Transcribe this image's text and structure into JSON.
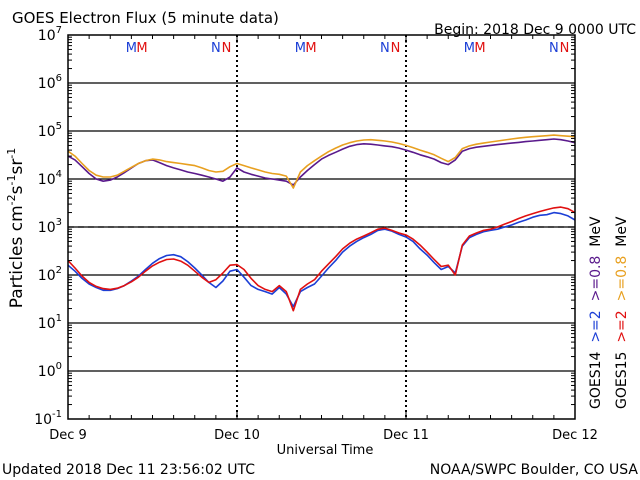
{
  "header": {
    "title": "GOES Electron Flux (5 minute data)",
    "begin": "Begin: 2018 Dec 9 0000 UTC"
  },
  "footer": {
    "updated": "Updated 2018 Dec 11 23:56:02 UTC",
    "source": "NOAA/SWPC Boulder, CO USA"
  },
  "colors": {
    "goes14_2mev": "#1c3fd6",
    "goes15_2mev": "#e01010",
    "goes14_08mev": "#5a1a8c",
    "goes15_08mev": "#e8a020",
    "marker_m": "#1c3fd6",
    "marker_n": "#e01010"
  },
  "chart_data": {
    "type": "line",
    "title": "GOES Electron Flux (5 minute data)",
    "xlabel": "Universal Time",
    "ylabel": "Particles cm⁻²s⁻¹sr⁻¹",
    "ylabel_parts": [
      "Particles cm",
      "-2",
      "s",
      "-1",
      "sr",
      "-1"
    ],
    "yscale": "log",
    "ylim": [
      0.1,
      10000000
    ],
    "xlim": [
      0,
      72
    ],
    "x_unit": "hours since 2018 Dec 9 0000 UTC",
    "x_ticks": [
      {
        "x": 0,
        "label": "Dec 9"
      },
      {
        "x": 24,
        "label": "Dec 10"
      },
      {
        "x": 48,
        "label": "Dec 11"
      },
      {
        "x": 72,
        "label": "Dec 12"
      }
    ],
    "y_ticks": [
      {
        "exp": "7"
      },
      {
        "exp": "6"
      },
      {
        "exp": "5"
      },
      {
        "exp": "4"
      },
      {
        "exp": "3"
      },
      {
        "exp": "2"
      },
      {
        "exp": "1"
      },
      {
        "exp": "0"
      },
      {
        "exp": "-1"
      }
    ],
    "threshold": 1000,
    "grid": true,
    "markers": [
      {
        "label": "M",
        "x": 9.0,
        "series": "GOES14"
      },
      {
        "label": "M",
        "x": 10.5,
        "series": "GOES15"
      },
      {
        "label": "N",
        "x": 21.0,
        "series": "GOES14"
      },
      {
        "label": "N",
        "x": 22.5,
        "series": "GOES15"
      },
      {
        "label": "M",
        "x": 33.0,
        "series": "GOES14"
      },
      {
        "label": "M",
        "x": 34.5,
        "series": "GOES15"
      },
      {
        "label": "N",
        "x": 45.0,
        "series": "GOES14"
      },
      {
        "label": "N",
        "x": 46.5,
        "series": "GOES15"
      },
      {
        "label": "M",
        "x": 57.0,
        "series": "GOES14"
      },
      {
        "label": "M",
        "x": 58.5,
        "series": "GOES15"
      },
      {
        "label": "N",
        "x": 69.0,
        "series": "GOES14"
      },
      {
        "label": "N",
        "x": 70.5,
        "series": "GOES15"
      }
    ],
    "legend": {
      "position": "right",
      "columns": [
        {
          "sat": "GOES14",
          "e2": ">=2",
          "e08": ">=0.8",
          "color2": "#1c3fd6",
          "color08": "#5a1a8c"
        },
        {
          "sat": "GOES15",
          "e2": ">=2",
          "e08": ">=0.8",
          "color2": "#e01010",
          "color08": "#e8a020"
        }
      ],
      "unit": "MeV"
    },
    "series": [
      {
        "name": "GOES14 >=2 MeV",
        "color": "#1c3fd6",
        "x": [
          0,
          1,
          2,
          3,
          4,
          5,
          6,
          7,
          8,
          9,
          10,
          11,
          12,
          13,
          14,
          15,
          16,
          17,
          18,
          19,
          20,
          21,
          22,
          23,
          24,
          25,
          26,
          27,
          28,
          29,
          30,
          31,
          32,
          33,
          34,
          35,
          36,
          37,
          38,
          39,
          40,
          41,
          42,
          43,
          44,
          45,
          46,
          47,
          48,
          49,
          50,
          51,
          52,
          53,
          54,
          55,
          56,
          57,
          58,
          59,
          60,
          61,
          62,
          63,
          64,
          65,
          66,
          67,
          68,
          69,
          70,
          71,
          72
        ],
        "values": [
          160,
          120,
          85,
          65,
          55,
          48,
          48,
          52,
          60,
          75,
          95,
          130,
          175,
          220,
          255,
          265,
          240,
          190,
          140,
          100,
          70,
          55,
          75,
          120,
          130,
          90,
          60,
          50,
          45,
          40,
          55,
          40,
          22,
          45,
          55,
          65,
          95,
          140,
          200,
          300,
          400,
          500,
          600,
          700,
          850,
          900,
          820,
          700,
          620,
          500,
          350,
          260,
          180,
          130,
          150,
          110,
          400,
          600,
          700,
          800,
          850,
          900,
          1000,
          1100,
          1250,
          1400,
          1600,
          1750,
          1800,
          2000,
          1900,
          1700,
          1400
        ]
      },
      {
        "name": "GOES15 >=2 MeV",
        "color": "#e01010",
        "x": [
          0,
          1,
          2,
          3,
          4,
          5,
          6,
          7,
          8,
          9,
          10,
          11,
          12,
          13,
          14,
          15,
          16,
          17,
          18,
          19,
          20,
          21,
          22,
          23,
          24,
          25,
          26,
          27,
          28,
          29,
          30,
          31,
          32,
          33,
          34,
          35,
          36,
          37,
          38,
          39,
          40,
          41,
          42,
          43,
          44,
          45,
          46,
          47,
          48,
          49,
          50,
          51,
          52,
          53,
          54,
          55,
          56,
          57,
          58,
          59,
          60,
          61,
          62,
          63,
          64,
          65,
          66,
          67,
          68,
          69,
          70,
          71,
          72
        ],
        "values": [
          200,
          140,
          95,
          70,
          58,
          52,
          50,
          53,
          60,
          72,
          90,
          120,
          155,
          185,
          210,
          215,
          195,
          160,
          120,
          90,
          70,
          80,
          110,
          160,
          165,
          130,
          85,
          60,
          50,
          45,
          60,
          45,
          18,
          50,
          65,
          80,
          120,
          170,
          240,
          350,
          460,
          560,
          650,
          760,
          900,
          950,
          850,
          750,
          680,
          560,
          420,
          300,
          210,
          150,
          160,
          100,
          420,
          650,
          750,
          850,
          900,
          1000,
          1150,
          1300,
          1500,
          1700,
          1900,
          2100,
          2300,
          2500,
          2600,
          2400,
          2000
        ]
      },
      {
        "name": "GOES14 >=0.8 MeV",
        "color": "#5a1a8c",
        "x": [
          0,
          1,
          2,
          3,
          4,
          5,
          6,
          7,
          8,
          9,
          10,
          11,
          12,
          13,
          14,
          15,
          16,
          17,
          18,
          19,
          20,
          21,
          22,
          23,
          24,
          25,
          26,
          27,
          28,
          29,
          30,
          31,
          32,
          33,
          34,
          35,
          36,
          37,
          38,
          39,
          40,
          41,
          42,
          43,
          44,
          45,
          46,
          47,
          48,
          49,
          50,
          51,
          52,
          53,
          54,
          55,
          56,
          57,
          58,
          59,
          60,
          61,
          62,
          63,
          64,
          65,
          66,
          67,
          68,
          69,
          70,
          71,
          72
        ],
        "values": [
          30000,
          25000,
          18000,
          13000,
          10000,
          9000,
          9500,
          11000,
          13500,
          17000,
          21000,
          24000,
          25000,
          22000,
          19000,
          17000,
          15500,
          14000,
          13000,
          12000,
          11000,
          10000,
          9000,
          11000,
          17000,
          14000,
          12500,
          11500,
          10500,
          10000,
          9500,
          9000,
          7500,
          11000,
          15000,
          20000,
          26000,
          31000,
          36000,
          42000,
          48000,
          52000,
          54000,
          53000,
          51000,
          49000,
          47000,
          44000,
          40000,
          36000,
          32000,
          29000,
          26000,
          22000,
          20000,
          25000,
          38000,
          43000,
          46000,
          48000,
          50000,
          52000,
          54000,
          56000,
          58000,
          60000,
          62000,
          64000,
          66000,
          68000,
          66000,
          62000,
          57000
        ]
      },
      {
        "name": "GOES15 >=0.8 MeV",
        "color": "#e8a020",
        "x": [
          0,
          1,
          2,
          3,
          4,
          5,
          6,
          7,
          8,
          9,
          10,
          11,
          12,
          13,
          14,
          15,
          16,
          17,
          18,
          19,
          20,
          21,
          22,
          23,
          24,
          25,
          26,
          27,
          28,
          29,
          30,
          31,
          32,
          33,
          34,
          35,
          36,
          37,
          38,
          39,
          40,
          41,
          42,
          43,
          44,
          45,
          46,
          47,
          48,
          49,
          50,
          51,
          52,
          53,
          54,
          55,
          56,
          57,
          58,
          59,
          60,
          61,
          62,
          63,
          64,
          65,
          66,
          67,
          68,
          69,
          70,
          71,
          72
        ],
        "values": [
          38000,
          30000,
          21000,
          15000,
          12000,
          11000,
          11000,
          12000,
          14500,
          17500,
          21000,
          24000,
          26000,
          25000,
          23000,
          22000,
          21000,
          20000,
          19000,
          17000,
          15000,
          14000,
          14500,
          18000,
          21000,
          19000,
          17000,
          15500,
          14000,
          13000,
          12500,
          11500,
          6500,
          14000,
          19000,
          24000,
          30000,
          37000,
          44000,
          51000,
          57000,
          62000,
          65000,
          66000,
          64000,
          62000,
          59000,
          55000,
          50000,
          45000,
          40000,
          36000,
          32000,
          27000,
          23000,
          28000,
          43000,
          49000,
          53000,
          56000,
          59000,
          62000,
          65000,
          68000,
          71000,
          74000,
          76000,
          78000,
          80000,
          82000,
          80000,
          78000,
          76000
        ]
      }
    ]
  }
}
